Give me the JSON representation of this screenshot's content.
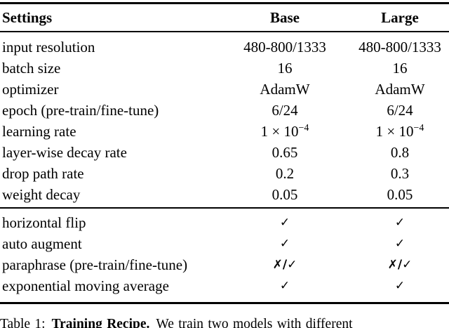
{
  "colors": {
    "background": "#ffffff",
    "text": "#000000",
    "rule": "#000000"
  },
  "table": {
    "header": {
      "settings": "Settings",
      "base": "Base",
      "large": "Large"
    },
    "hyperparams": [
      {
        "label": "input resolution",
        "base": "480-800/1333",
        "large": "480-800/1333"
      },
      {
        "label": "batch size",
        "base": "16",
        "large": "16"
      },
      {
        "label": "optimizer",
        "base": "AdamW",
        "large": "AdamW"
      },
      {
        "label": "epoch (pre-train/fine-tune)",
        "base": "6/24",
        "large": "6/24"
      },
      {
        "label": "learning rate",
        "base_mantissa": "1 × 10",
        "base_exponent": "−4",
        "large_mantissa": "1 × 10",
        "large_exponent": "−4"
      },
      {
        "label": "layer-wise decay rate",
        "base": "0.65",
        "large": "0.8"
      },
      {
        "label": "drop path rate",
        "base": "0.2",
        "large": "0.3"
      },
      {
        "label": "weight decay",
        "base": "0.05",
        "large": "0.05"
      }
    ],
    "augmentations": [
      {
        "label": "horizontal flip",
        "base": "✓",
        "large": "✓"
      },
      {
        "label": "auto augment",
        "base": "✓",
        "large": "✓"
      },
      {
        "label": "paraphrase (pre-train/fine-tune)",
        "base": "✗/✓",
        "large": "✗/✓"
      },
      {
        "label": "exponential moving average",
        "base": "✓",
        "large": "✓"
      }
    ]
  },
  "caption": {
    "prefix": "Table 1:",
    "title": "Training Recipe.",
    "text": "We train two models with different"
  }
}
